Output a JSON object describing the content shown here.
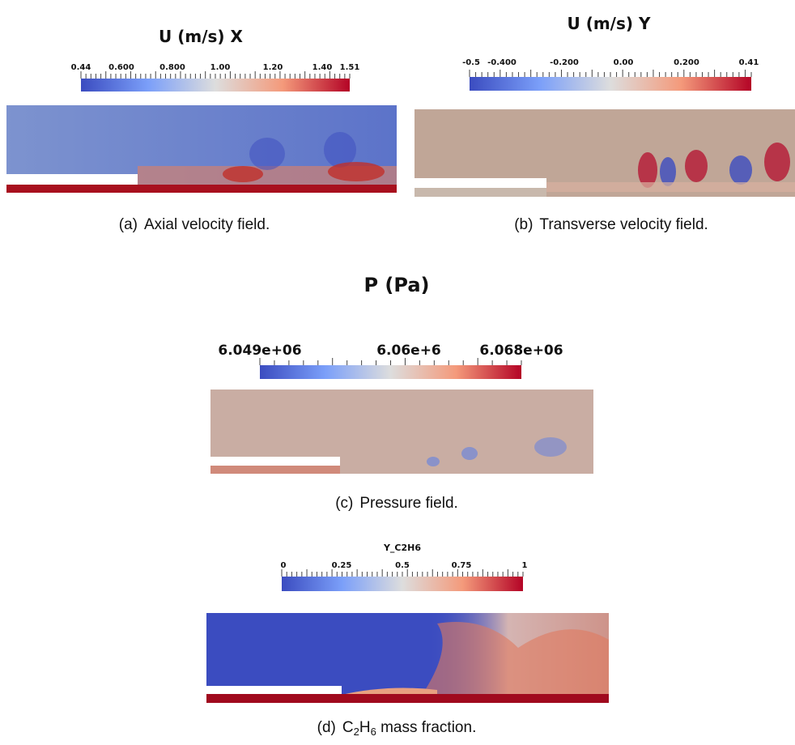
{
  "panels": [
    {
      "title": "U (m/s) X",
      "ticks": [
        "0.44",
        "0.600",
        "0.800",
        "1.00",
        "1.20",
        "1.40",
        "1.51"
      ],
      "caption": {
        "label": "(a)",
        "text": "Axial velocity field."
      }
    },
    {
      "title": "U (m/s) Y",
      "ticks": [
        "-0.5",
        "-0.400",
        "-0.200",
        "0.00",
        "0.200",
        "0.41"
      ],
      "caption": {
        "label": "(b)",
        "text": "Transverse velocity field."
      }
    },
    {
      "title": "P (Pa)",
      "ticks": [
        "6.049e+06",
        "6.06e+6",
        "6.068e+06"
      ],
      "caption": {
        "label": "(c)",
        "text": "Pressure field."
      }
    },
    {
      "title": "Y_C2H6",
      "ticks": [
        "0",
        "0.25",
        "0.5",
        "0.75",
        "1"
      ],
      "caption": {
        "label": "(d)",
        "text": [
          "C",
          "2",
          "H",
          "6",
          " mass fraction."
        ]
      }
    }
  ]
}
